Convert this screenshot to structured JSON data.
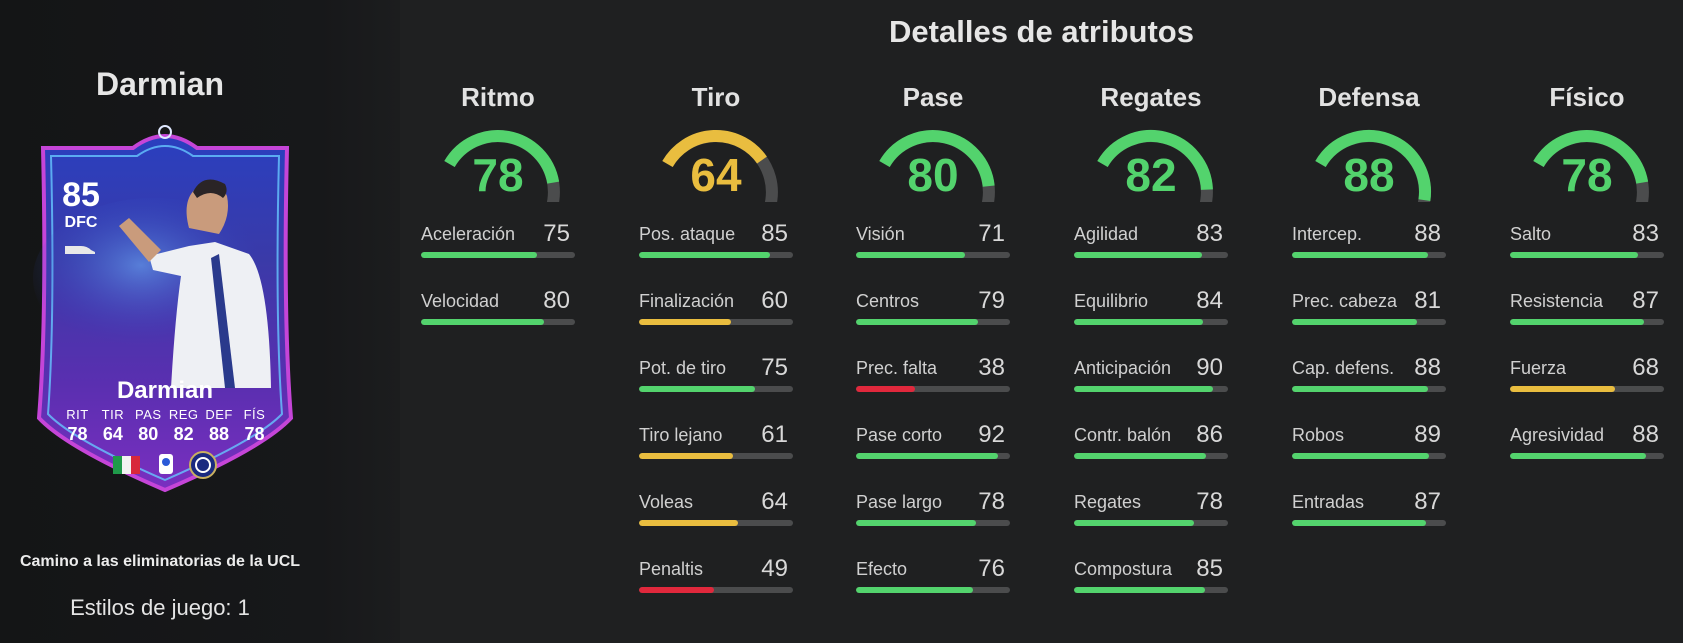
{
  "player": {
    "name": "Darmian",
    "card": {
      "rating": "85",
      "position": "DFC",
      "name": "Darmian",
      "stats": [
        {
          "label": "RIT",
          "value": "78"
        },
        {
          "label": "TIR",
          "value": "64"
        },
        {
          "label": "PAS",
          "value": "80"
        },
        {
          "label": "REG",
          "value": "82"
        },
        {
          "label": "DEF",
          "value": "88"
        },
        {
          "label": "FÍS",
          "value": "78"
        }
      ]
    },
    "card_type": "Camino a las eliminatorias de la UCL",
    "playstyles_label": "Estilos de juego: 1"
  },
  "attributes_title": "Detalles de atributos",
  "colors": {
    "green": "#53d36d",
    "yellow": "#e9bd3f",
    "red": "#e0283c",
    "track": "#4b4c4d"
  },
  "categories": [
    {
      "name": "Ritmo",
      "value": "78",
      "tier": "green",
      "attributes": [
        {
          "name": "Aceleración",
          "value": "75",
          "tier": "green"
        },
        {
          "name": "Velocidad",
          "value": "80",
          "tier": "green"
        }
      ]
    },
    {
      "name": "Tiro",
      "value": "64",
      "tier": "yellow",
      "attributes": [
        {
          "name": "Pos. ataque",
          "value": "85",
          "tier": "green"
        },
        {
          "name": "Finalización",
          "value": "60",
          "tier": "yellow"
        },
        {
          "name": "Pot. de tiro",
          "value": "75",
          "tier": "green"
        },
        {
          "name": "Tiro lejano",
          "value": "61",
          "tier": "yellow"
        },
        {
          "name": "Voleas",
          "value": "64",
          "tier": "yellow"
        },
        {
          "name": "Penaltis",
          "value": "49",
          "tier": "red"
        }
      ]
    },
    {
      "name": "Pase",
      "value": "80",
      "tier": "green",
      "attributes": [
        {
          "name": "Visión",
          "value": "71",
          "tier": "green"
        },
        {
          "name": "Centros",
          "value": "79",
          "tier": "green"
        },
        {
          "name": "Prec. falta",
          "value": "38",
          "tier": "red"
        },
        {
          "name": "Pase corto",
          "value": "92",
          "tier": "green"
        },
        {
          "name": "Pase largo",
          "value": "78",
          "tier": "green"
        },
        {
          "name": "Efecto",
          "value": "76",
          "tier": "green"
        }
      ]
    },
    {
      "name": "Regates",
      "value": "82",
      "tier": "green",
      "attributes": [
        {
          "name": "Agilidad",
          "value": "83",
          "tier": "green"
        },
        {
          "name": "Equilibrio",
          "value": "84",
          "tier": "green"
        },
        {
          "name": "Anticipación",
          "value": "90",
          "tier": "green"
        },
        {
          "name": "Contr. balón",
          "value": "86",
          "tier": "green"
        },
        {
          "name": "Regates",
          "value": "78",
          "tier": "green"
        },
        {
          "name": "Compostura",
          "value": "85",
          "tier": "green"
        }
      ]
    },
    {
      "name": "Defensa",
      "value": "88",
      "tier": "green",
      "attributes": [
        {
          "name": "Intercep.",
          "value": "88",
          "tier": "green"
        },
        {
          "name": "Prec. cabeza",
          "value": "81",
          "tier": "green"
        },
        {
          "name": "Cap. defens.",
          "value": "88",
          "tier": "green"
        },
        {
          "name": "Robos",
          "value": "89",
          "tier": "green"
        },
        {
          "name": "Entradas",
          "value": "87",
          "tier": "green"
        }
      ]
    },
    {
      "name": "Físico",
      "value": "78",
      "tier": "green",
      "attributes": [
        {
          "name": "Salto",
          "value": "83",
          "tier": "green"
        },
        {
          "name": "Resistencia",
          "value": "87",
          "tier": "green"
        },
        {
          "name": "Fuerza",
          "value": "68",
          "tier": "yellow"
        },
        {
          "name": "Agresividad",
          "value": "88",
          "tier": "green"
        }
      ]
    }
  ]
}
